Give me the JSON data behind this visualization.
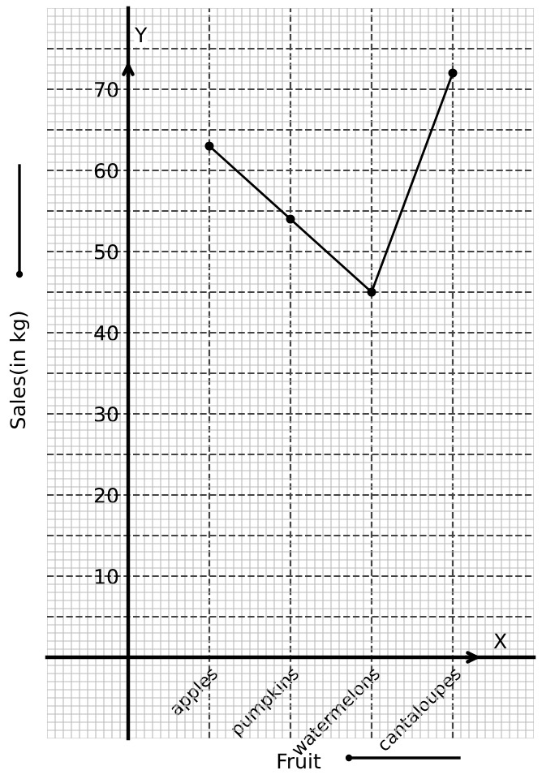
{
  "chart_data": {
    "type": "line",
    "xlabel": "Fruit",
    "ylabel": "Sales(in kg)",
    "categories": [
      "apples",
      "pumpkins",
      "watermelons",
      "cantaloupes"
    ],
    "series": [
      {
        "color": "#000000",
        "values": [
          63,
          54,
          45,
          72
        ]
      }
    ],
    "ylim": [
      -10,
      80
    ],
    "yticks": [
      {
        "value": 0,
        "label": null
      },
      {
        "value": 5,
        "label": null
      },
      10,
      {
        "value": 15,
        "label": null
      },
      20,
      {
        "value": 25,
        "label": null
      },
      30,
      {
        "value": 35,
        "label": null
      },
      40,
      {
        "value": 45,
        "label": null
      },
      50,
      {
        "value": 55,
        "label": null
      },
      60,
      {
        "value": 65,
        "label": null
      },
      70,
      {
        "value": 75,
        "label": null
      }
    ],
    "annotations": [
      "X",
      "Y"
    ],
    "grid": true,
    "marker": "circle",
    "line_style": "solid"
  }
}
